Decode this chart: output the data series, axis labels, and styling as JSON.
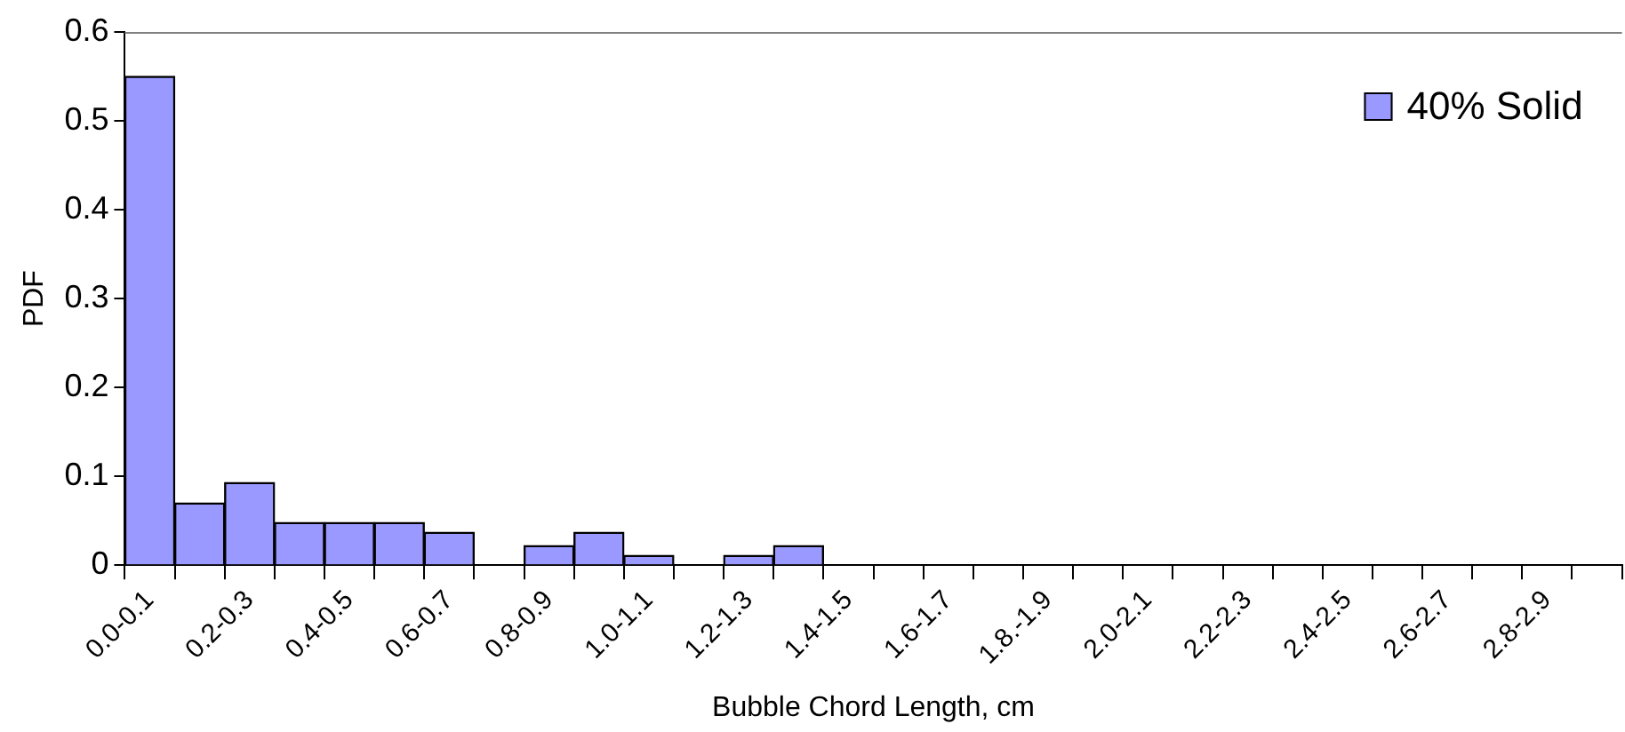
{
  "chart_data": {
    "type": "bar",
    "xlabel": "Bubble Chord Length, cm",
    "ylabel": "PDF",
    "categories": [
      "0.0-0.1",
      null,
      "0.2-0.3",
      null,
      "0.4-0.5",
      null,
      "0.6-0.7",
      null,
      "0.8-0.9",
      null,
      "1.0-1.1",
      null,
      "1.2-1.3",
      null,
      "1.4-1.5",
      null,
      "1.6-1.7",
      null,
      "1.8.-1.9",
      null,
      "2.0-2.1",
      null,
      "2.2-2.3",
      null,
      "2.4-2.5",
      null,
      "2.6-2.7",
      null,
      "2.8-2.9",
      null
    ],
    "series": [
      {
        "name": "40% Solid",
        "color": "#9999ff",
        "values": [
          0.55,
          0.07,
          0.093,
          0.048,
          0.048,
          0.048,
          0.037,
          0,
          0.022,
          0.037,
          0.011,
          0,
          0.011,
          0.022,
          0,
          0,
          0,
          0,
          0,
          0,
          0,
          0,
          0,
          0,
          0,
          0,
          0,
          0,
          0,
          0
        ]
      }
    ],
    "ylim": [
      0,
      0.6
    ],
    "yticks": [
      0,
      0.1,
      0.2,
      0.3,
      0.4,
      0.5,
      0.6
    ],
    "grid": false,
    "legend": "top right"
  }
}
